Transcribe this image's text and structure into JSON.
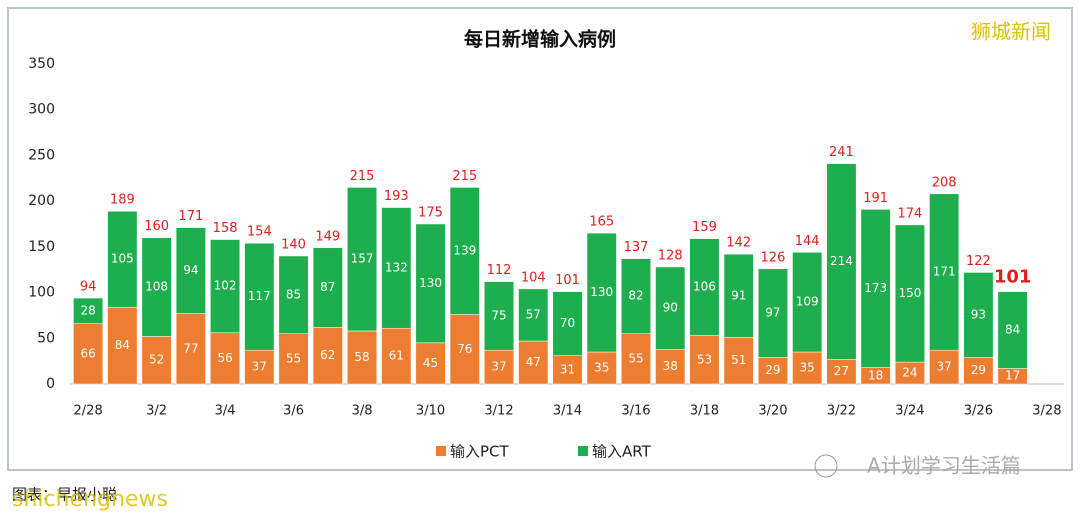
{
  "chart_data": {
    "type": "stacked_bar",
    "title": "每日新增输入病例",
    "categories": [
      "2/28",
      null,
      "3/2",
      null,
      "3/4",
      null,
      "3/6",
      null,
      "3/8",
      null,
      "3/10",
      null,
      "3/12",
      null,
      "3/14",
      null,
      "3/16",
      null,
      "3/18",
      null,
      "3/20",
      null,
      "3/22",
      null,
      "3/24",
      null,
      "3/26",
      null,
      "3/28"
    ],
    "series": [
      {
        "name": "输入PCT",
        "color": "#ed7d31",
        "values": [
          66,
          84,
          52,
          77,
          56,
          37,
          55,
          62,
          58,
          61,
          45,
          76,
          37,
          47,
          31,
          35,
          55,
          38,
          53,
          51,
          29,
          35,
          27,
          18,
          24,
          37,
          29,
          17,
          null
        ]
      },
      {
        "name": "输入ART",
        "color": "#1fae4e",
        "values": [
          28,
          105,
          108,
          94,
          102,
          117,
          85,
          87,
          157,
          132,
          130,
          139,
          75,
          57,
          70,
          130,
          82,
          90,
          106,
          91,
          97,
          109,
          214,
          173,
          150,
          171,
          93,
          84,
          null
        ]
      }
    ],
    "totals": [
      94,
      189,
      160,
      171,
      158,
      154,
      140,
      149,
      215,
      193,
      175,
      215,
      112,
      104,
      101,
      165,
      137,
      128,
      159,
      142,
      126,
      144,
      241,
      191,
      174,
      208,
      122,
      101,
      null
    ],
    "total_color": "#e0201e",
    "ylim": [
      0,
      350
    ],
    "yticks": [
      0,
      50,
      100,
      150,
      200,
      250,
      300,
      350
    ],
    "grid": false,
    "legend": "bottom"
  },
  "watermarks": {
    "brand": "狮城新闻",
    "account": "A计划学习生活篇",
    "source": "图表：早报小聪",
    "site": "shichengnews"
  }
}
